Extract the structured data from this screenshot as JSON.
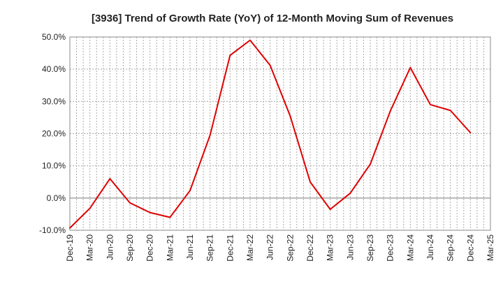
{
  "chart_data": {
    "type": "line",
    "title": "[3936]  Trend of Growth Rate (YoY) of 12-Month Moving Sum of Revenues",
    "xlabel": "",
    "ylabel": "",
    "ylim": [
      -10,
      50
    ],
    "y_ticks": [
      50,
      40,
      30,
      20,
      10,
      0,
      -10
    ],
    "y_tick_labels": [
      "50.0%",
      "40.0%",
      "30.0%",
      "20.0%",
      "10.0%",
      "0.0%",
      "-10.0%"
    ],
    "x_tick_labels": [
      "Dec-19",
      "Mar-20",
      "Jun-20",
      "Sep-20",
      "Dec-20",
      "Mar-21",
      "Jun-21",
      "Sep-21",
      "Dec-21",
      "Mar-22",
      "Jun-22",
      "Sep-22",
      "Dec-22",
      "Mar-23",
      "Jun-23",
      "Sep-23",
      "Dec-23",
      "Mar-24",
      "Jun-24",
      "Sep-24",
      "Dec-24",
      "Mar-25"
    ],
    "grid": true,
    "legend": "none",
    "line_color": "#e00000",
    "x": [
      "Dec-19",
      "Mar-20",
      "Jun-20",
      "Sep-20",
      "Dec-20",
      "Mar-21",
      "Jun-21",
      "Sep-21",
      "Dec-21",
      "Mar-22",
      "Jun-22",
      "Sep-22",
      "Dec-22",
      "Mar-23",
      "Jun-23",
      "Sep-23",
      "Dec-23",
      "Mar-24",
      "Jun-24",
      "Sep-24",
      "Dec-24"
    ],
    "series": [
      {
        "values": [
          -9.3,
          -3.2,
          6.0,
          -1.5,
          -4.5,
          -6.0,
          2.3,
          19.5,
          44.3,
          49.0,
          41.2,
          25.5,
          5.0,
          -3.5,
          1.5,
          10.5,
          27.0,
          40.5,
          29.0,
          27.2,
          20.3
        ]
      }
    ]
  }
}
